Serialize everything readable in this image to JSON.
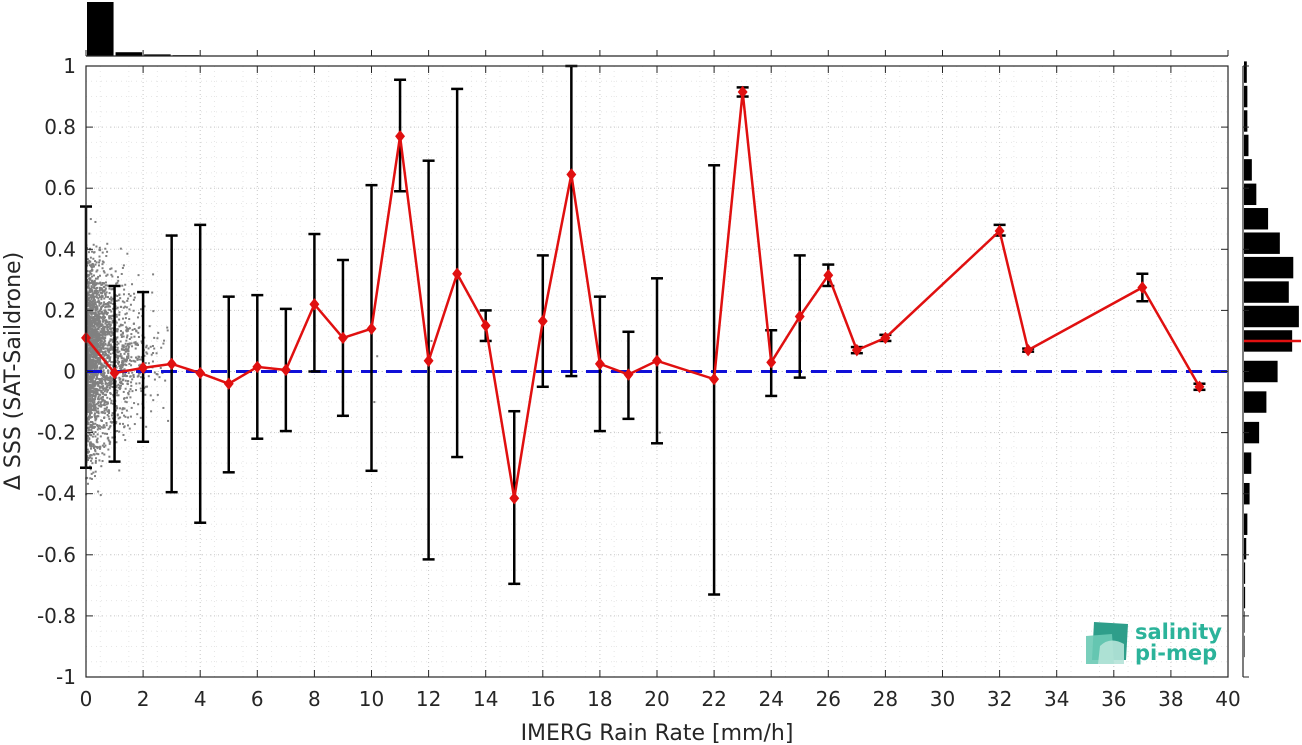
{
  "chart_data": {
    "type": "line",
    "xlabel": "IMERG Rain Rate [mm/h]",
    "ylabel": "Δ SSS (SAT-Saildrone)",
    "xlim": [
      0,
      40
    ],
    "ylim": [
      -1,
      1
    ],
    "x_ticks": [
      0,
      2,
      4,
      6,
      8,
      10,
      12,
      14,
      16,
      18,
      20,
      22,
      24,
      26,
      28,
      30,
      32,
      34,
      36,
      38,
      40
    ],
    "y_ticks": [
      -1,
      -0.8,
      -0.6,
      -0.4,
      -0.2,
      0,
      0.2,
      0.4,
      0.6,
      0.8,
      1
    ],
    "x_tick_labels": [
      "0",
      "2",
      "4",
      "6",
      "8",
      "10",
      "12",
      "14",
      "16",
      "18",
      "20",
      "22",
      "24",
      "26",
      "28",
      "30",
      "32",
      "34",
      "36",
      "38",
      "40"
    ],
    "y_tick_labels": [
      "-1",
      "-0.8",
      "-0.6",
      "-0.4",
      "-0.2",
      "0",
      "0.2",
      "0.4",
      "0.6",
      "0.8",
      "1"
    ],
    "grid": true,
    "reference_line": {
      "y": 0,
      "color": "#1010d8",
      "style": "dashed"
    },
    "series": [
      {
        "kind": "binned-mean",
        "color": "#e01010",
        "marker": "diamond",
        "x": [
          0,
          1,
          2,
          3,
          4,
          5,
          6,
          7,
          8,
          9,
          10,
          11,
          12,
          13,
          14,
          15,
          16,
          17,
          18,
          19,
          20,
          22,
          23,
          24,
          25,
          26,
          27,
          28,
          32,
          33,
          37,
          39
        ],
        "y": [
          0.11,
          -0.005,
          0.012,
          0.025,
          -0.005,
          -0.04,
          0.015,
          0.005,
          0.22,
          0.11,
          0.14,
          0.77,
          0.035,
          0.32,
          0.15,
          -0.415,
          0.165,
          0.645,
          0.025,
          -0.01,
          0.035,
          -0.025,
          0.915,
          0.03,
          0.18,
          0.315,
          0.07,
          0.11,
          0.46,
          0.07,
          0.275,
          -0.05
        ],
        "err_low": [
          -0.315,
          -0.295,
          -0.23,
          -0.395,
          -0.495,
          -0.33,
          -0.22,
          -0.195,
          0.0,
          -0.145,
          -0.325,
          0.59,
          -0.615,
          -0.28,
          0.1,
          -0.695,
          -0.05,
          -0.015,
          -0.195,
          -0.155,
          -0.235,
          -0.73,
          0.9,
          -0.08,
          -0.02,
          0.28,
          0.06,
          0.1,
          0.445,
          0.065,
          0.23,
          -0.06
        ],
        "err_high": [
          0.54,
          0.28,
          0.26,
          0.445,
          0.48,
          0.245,
          0.25,
          0.205,
          0.45,
          0.365,
          0.61,
          0.955,
          0.69,
          0.925,
          0.2,
          -0.13,
          0.38,
          1.0,
          0.245,
          0.13,
          0.305,
          0.675,
          0.93,
          0.135,
          0.38,
          0.35,
          0.08,
          0.12,
          0.48,
          0.075,
          0.32,
          -0.04
        ]
      }
    ],
    "scatter_points_color": "#808080",
    "top_histogram": {
      "bin_edges": [
        0,
        1,
        2,
        3,
        4
      ],
      "relative_counts": [
        1.0,
        0.07,
        0.03,
        0.015
      ]
    },
    "right_histogram": {
      "bin_centers": [
        0.98,
        0.9,
        0.82,
        0.74,
        0.66,
        0.58,
        0.5,
        0.42,
        0.34,
        0.26,
        0.18,
        0.1,
        0.0,
        -0.1,
        -0.2,
        -0.3,
        -0.4,
        -0.5,
        -0.58,
        -0.66,
        -0.74,
        -0.82,
        -0.9
      ],
      "relative_counts": [
        0.05,
        0.06,
        0.06,
        0.08,
        0.14,
        0.22,
        0.43,
        0.64,
        0.88,
        0.8,
        0.98,
        0.86,
        0.6,
        0.4,
        0.27,
        0.13,
        0.1,
        0.06,
        0.04,
        0.02,
        0.02,
        0.01,
        0.01
      ],
      "median_line_y": 0.1,
      "median_line_color": "#e01010"
    }
  },
  "logo": {
    "line1": "salinity",
    "line2": "pi-mep"
  }
}
